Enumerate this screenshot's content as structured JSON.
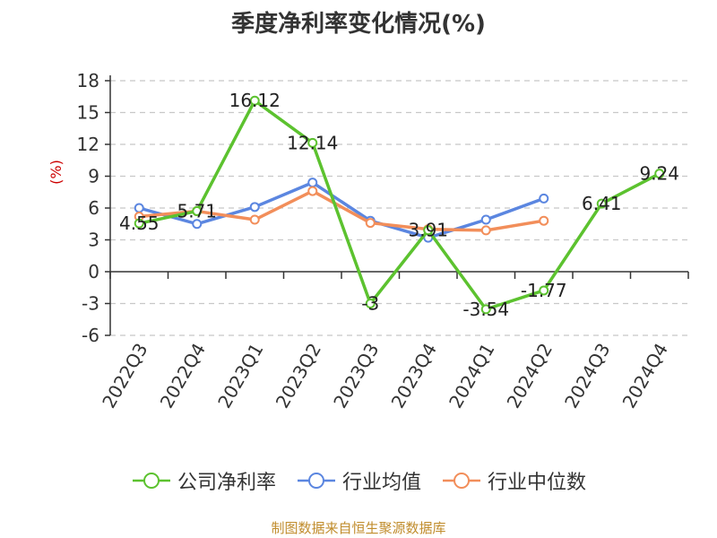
{
  "chart_data": {
    "type": "line",
    "title": "季度净利率变化情况(%)",
    "ylabel": "(%)",
    "xlabel": "",
    "categories": [
      "2022Q3",
      "2022Q4",
      "2023Q1",
      "2023Q2",
      "2023Q3",
      "2023Q4",
      "2024Q1",
      "2024Q2",
      "2024Q3",
      "2024Q4"
    ],
    "yticks": [
      "18",
      "15",
      "12",
      "9",
      "6",
      "3",
      "0",
      "-3",
      "-6"
    ],
    "ylim": [
      -6,
      18
    ],
    "grid": "horizontal dashed",
    "legend_position": "bottom",
    "series": [
      {
        "name": "公司净利率",
        "color": "#5cc22f",
        "values": [
          4.55,
          5.71,
          16.12,
          12.14,
          -3,
          3.91,
          -3.54,
          -1.77,
          6.41,
          9.24
        ],
        "labels": [
          "4.55",
          "5.71",
          "16.12",
          "12.14",
          "-3",
          "3.91",
          "-3.54",
          "-1.77",
          "6.41",
          "9.24"
        ]
      },
      {
        "name": "行业均值",
        "color": "#5b86e0",
        "values": [
          6.0,
          4.5,
          6.1,
          8.4,
          4.8,
          3.2,
          4.9,
          6.9,
          null,
          null
        ]
      },
      {
        "name": "行业中位数",
        "color": "#f28e5a",
        "values": [
          5.2,
          5.7,
          4.9,
          7.6,
          4.6,
          4.0,
          3.9,
          4.8,
          null,
          null
        ]
      }
    ]
  },
  "source_text": "制图数据来自恒生聚源数据库"
}
